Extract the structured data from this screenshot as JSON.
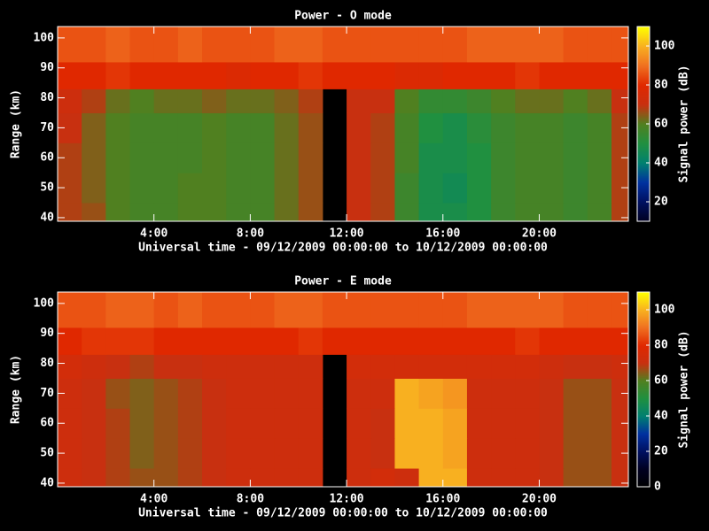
{
  "chart_data": [
    {
      "type": "heatmap",
      "title": "Power - O mode",
      "xlabel": "Universal time - 09/12/2009 00:00:00 to 10/12/2009 00:00:00",
      "ylabel": "Range (km)",
      "colorbar_label": "Signal power (dB)",
      "x_bins": [
        0,
        1,
        2,
        3,
        4,
        5,
        6,
        7,
        8,
        9,
        10,
        11,
        12,
        13,
        14,
        15,
        16,
        17,
        18,
        19,
        20,
        21,
        22,
        23,
        23.7
      ],
      "y_bins": [
        38.8,
        45,
        55,
        65,
        75,
        83,
        92,
        103.8
      ],
      "values": [
        [
          68,
          66,
          60,
          58,
          58,
          60,
          60,
          58,
          58,
          62,
          66,
          null,
          70,
          68,
          56,
          48,
          48,
          50,
          56,
          58,
          58,
          56,
          58,
          68
        ],
        [
          68,
          64,
          60,
          58,
          58,
          60,
          60,
          58,
          58,
          62,
          66,
          null,
          70,
          68,
          56,
          48,
          46,
          50,
          56,
          58,
          58,
          56,
          58,
          68
        ],
        [
          68,
          64,
          60,
          58,
          58,
          58,
          60,
          58,
          58,
          62,
          66,
          null,
          70,
          68,
          58,
          48,
          48,
          50,
          56,
          58,
          58,
          56,
          58,
          68
        ],
        [
          70,
          64,
          60,
          58,
          58,
          58,
          60,
          58,
          58,
          62,
          66,
          null,
          70,
          68,
          58,
          50,
          48,
          52,
          56,
          58,
          58,
          56,
          58,
          68
        ],
        [
          72,
          68,
          62,
          60,
          62,
          62,
          64,
          62,
          62,
          64,
          68,
          null,
          70,
          70,
          60,
          54,
          54,
          56,
          60,
          62,
          62,
          60,
          62,
          70
        ],
        [
          80,
          80,
          82,
          80,
          80,
          80,
          80,
          78,
          80,
          80,
          82,
          80,
          80,
          80,
          78,
          78,
          80,
          80,
          80,
          82,
          80,
          80,
          80,
          80
        ],
        [
          86,
          86,
          88,
          86,
          86,
          88,
          86,
          86,
          86,
          88,
          88,
          86,
          86,
          86,
          86,
          86,
          86,
          88,
          88,
          88,
          88,
          86,
          86,
          86
        ]
      ],
      "xlim": [
        0,
        23.7
      ],
      "ylim": [
        38.8,
        103.8
      ],
      "xticks": [
        {
          "value": 4,
          "label": "4:00"
        },
        {
          "value": 8,
          "label": "8:00"
        },
        {
          "value": 12,
          "label": "12:00"
        },
        {
          "value": 16,
          "label": "16:00"
        },
        {
          "value": 20,
          "label": "20:00"
        }
      ],
      "yticks": [
        40,
        50,
        60,
        70,
        80,
        90,
        100
      ],
      "clim": [
        10,
        110
      ],
      "cticks": [
        20,
        40,
        60,
        80,
        100
      ],
      "colormap": [
        "#000020",
        "#001060",
        "#0030a0",
        "#008070",
        "#209040",
        "#508020",
        "#c83010",
        "#e02800",
        "#f07020",
        "#f8b020",
        "#ffff00"
      ]
    },
    {
      "type": "heatmap",
      "title": "Power - E mode",
      "xlabel": "Universal time - 09/12/2009 00:00:00 to 10/12/2009 00:00:00",
      "ylabel": "Range (km)",
      "colorbar_label": "Signal power (dB)",
      "x_bins": [
        0,
        1,
        2,
        3,
        4,
        5,
        6,
        7,
        8,
        9,
        10,
        11,
        12,
        13,
        14,
        15,
        16,
        17,
        18,
        19,
        20,
        21,
        22,
        23,
        23.7
      ],
      "y_bins": [
        38.8,
        45,
        55,
        65,
        75,
        83,
        92,
        103.8
      ],
      "values": [
        [
          72,
          70,
          68,
          66,
          66,
          68,
          70,
          72,
          72,
          72,
          72,
          null,
          72,
          74,
          72,
          100,
          100,
          72,
          72,
          72,
          70,
          66,
          66,
          70
        ],
        [
          72,
          70,
          68,
          64,
          66,
          68,
          70,
          72,
          72,
          72,
          72,
          null,
          72,
          70,
          100,
          100,
          98,
          72,
          72,
          72,
          70,
          66,
          66,
          70
        ],
        [
          72,
          70,
          68,
          64,
          66,
          68,
          70,
          72,
          72,
          72,
          72,
          null,
          72,
          70,
          100,
          100,
          98,
          72,
          72,
          72,
          70,
          66,
          66,
          70
        ],
        [
          72,
          70,
          66,
          64,
          66,
          68,
          70,
          72,
          72,
          72,
          72,
          null,
          72,
          72,
          100,
          98,
          96,
          72,
          72,
          72,
          70,
          66,
          66,
          70
        ],
        [
          74,
          72,
          70,
          68,
          70,
          70,
          72,
          72,
          72,
          72,
          72,
          null,
          74,
          74,
          74,
          74,
          74,
          74,
          74,
          74,
          72,
          70,
          70,
          72
        ],
        [
          80,
          82,
          82,
          82,
          80,
          80,
          80,
          80,
          80,
          80,
          82,
          80,
          80,
          80,
          80,
          80,
          80,
          80,
          80,
          82,
          80,
          80,
          80,
          80
        ],
        [
          86,
          86,
          88,
          88,
          86,
          88,
          86,
          86,
          86,
          88,
          88,
          86,
          86,
          86,
          86,
          86,
          86,
          88,
          88,
          88,
          88,
          86,
          86,
          86
        ]
      ],
      "xlim": [
        0,
        23.7
      ],
      "ylim": [
        38.8,
        103.8
      ],
      "xticks": [
        {
          "value": 4,
          "label": "4:00"
        },
        {
          "value": 8,
          "label": "8:00"
        },
        {
          "value": 12,
          "label": "12:00"
        },
        {
          "value": 16,
          "label": "16:00"
        },
        {
          "value": 20,
          "label": "20:00"
        }
      ],
      "yticks": [
        40,
        50,
        60,
        70,
        80,
        90,
        100
      ],
      "clim": [
        0,
        110
      ],
      "cticks": [
        0,
        20,
        40,
        60,
        80,
        100
      ],
      "colormap": [
        "#000000",
        "#000020",
        "#001060",
        "#0030a0",
        "#008070",
        "#209040",
        "#508020",
        "#c83010",
        "#e02800",
        "#f07020",
        "#f8b020",
        "#ffff00"
      ]
    }
  ]
}
